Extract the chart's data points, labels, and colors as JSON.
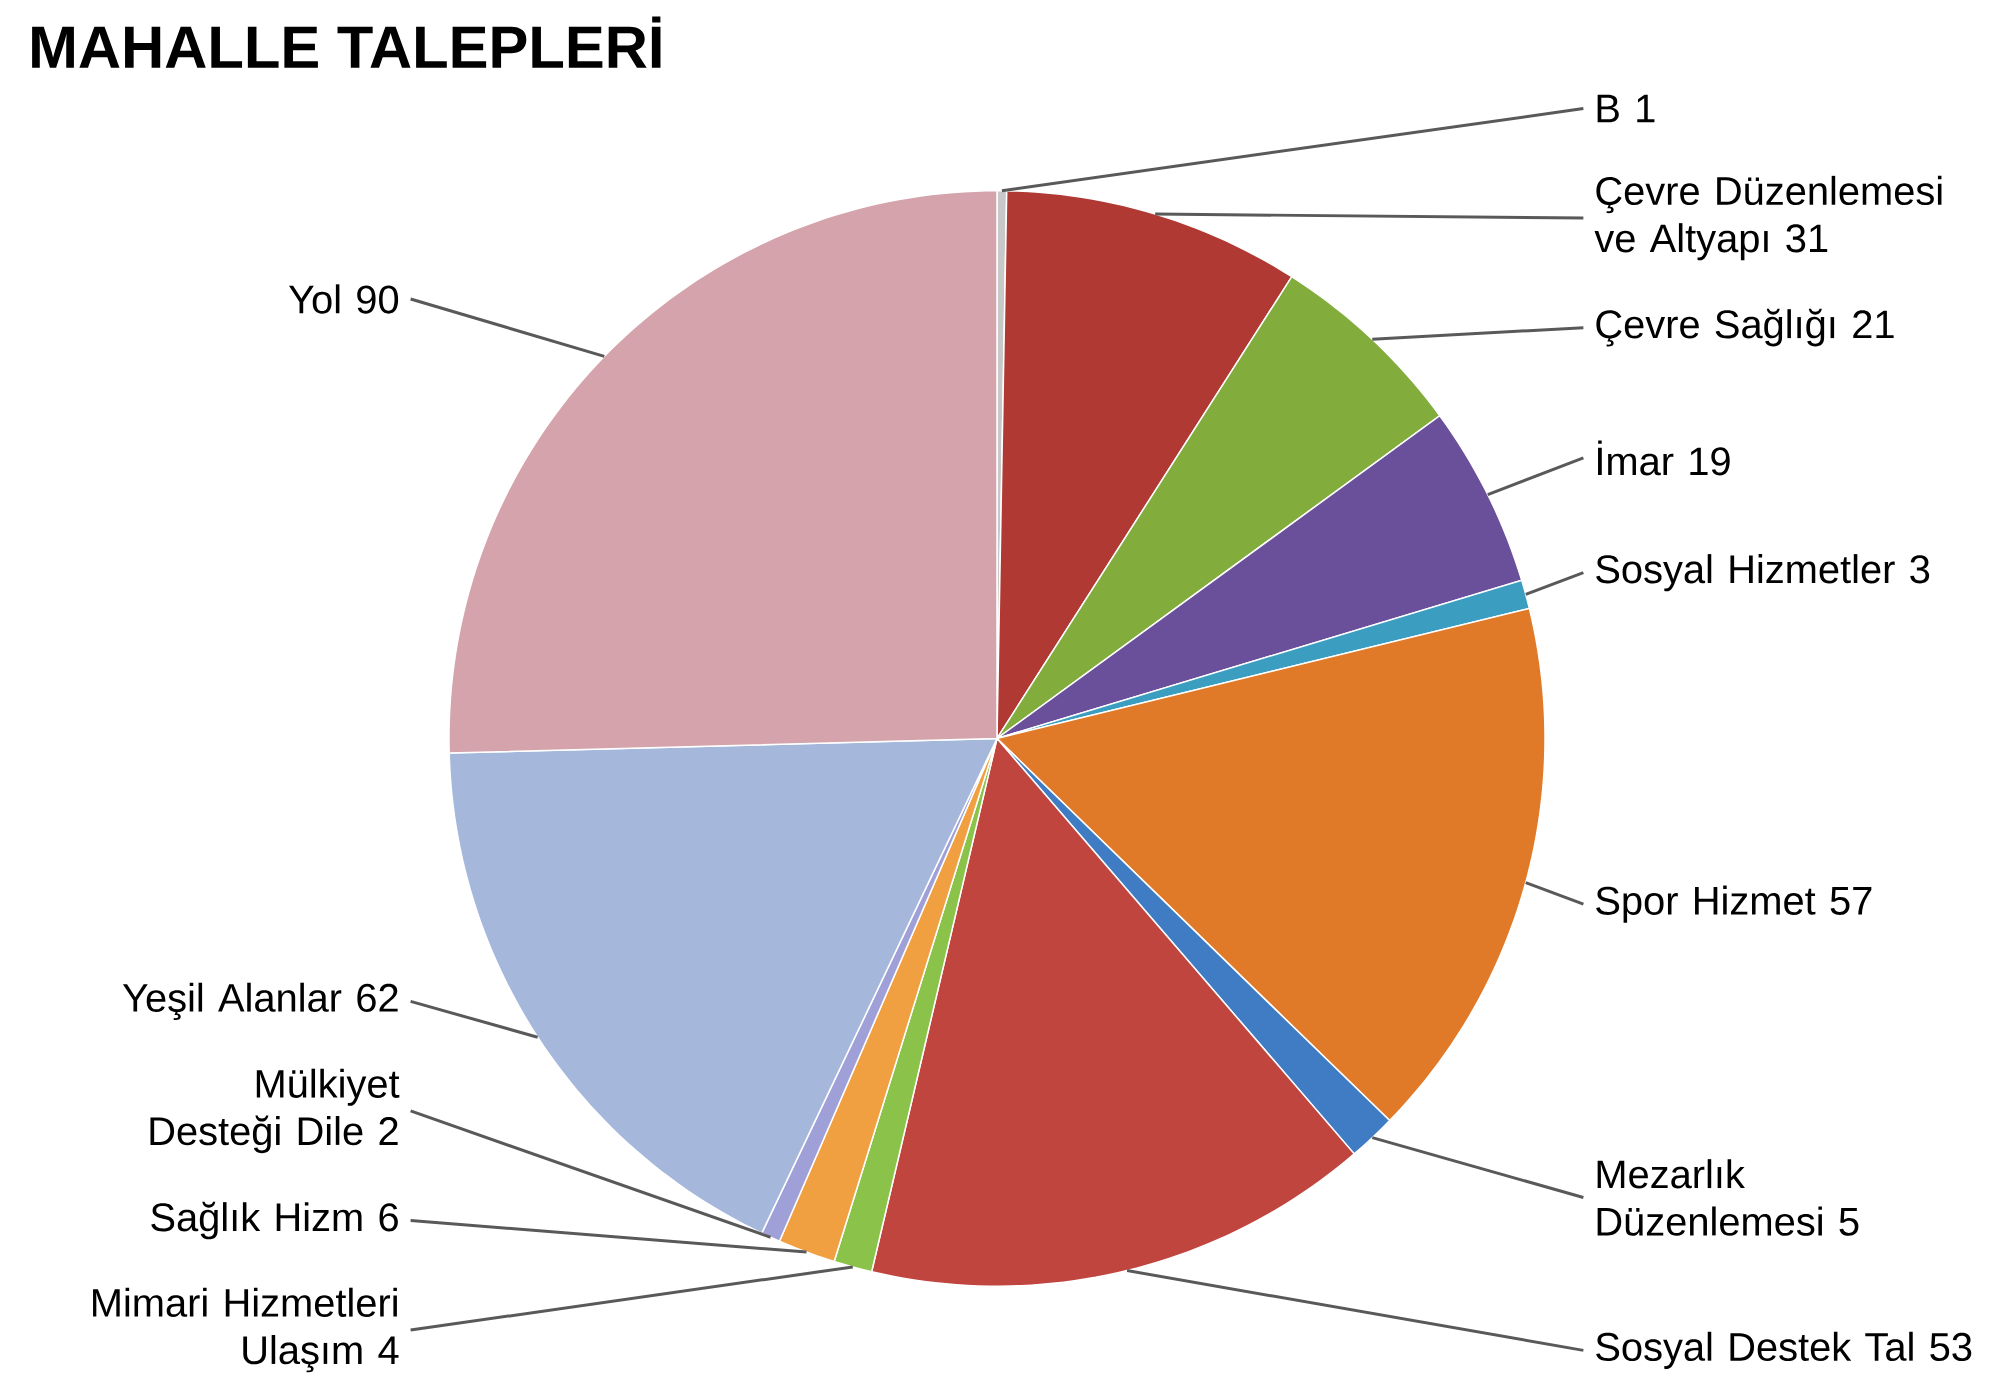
{
  "chart_data": {
    "type": "pie",
    "title": "MAHALLE TALEPLERİ",
    "categories": [
      "B",
      "Çevre Düzenlemesi ve Altyapı",
      "Çevre Sağlığı",
      "İmar",
      "Sosyal Hizmetler",
      "Spor Hizmet",
      "Mezarlık Düzenlemesi",
      "Sosyal Destek Tal",
      "Mimari Hizmetleri Ulaşım",
      "Sağlık Hizm",
      "Mülkiyet Desteği Dile",
      "Yeşil Alanlar",
      "Yol"
    ],
    "values": [
      1,
      31,
      21,
      19,
      3,
      57,
      5,
      53,
      4,
      6,
      2,
      62,
      90
    ],
    "colors": [
      "#c8c8c8",
      "#b03a33",
      "#82ac3c",
      "#6a4f9a",
      "#3b9ec0",
      "#e07a28",
      "#3f7cc4",
      "#c0453f",
      "#8bc34a",
      "#f0a040",
      "#a0a0d8",
      "#a5b8dc",
      "#d4a3ab"
    ],
    "data_labels": true
  }
}
